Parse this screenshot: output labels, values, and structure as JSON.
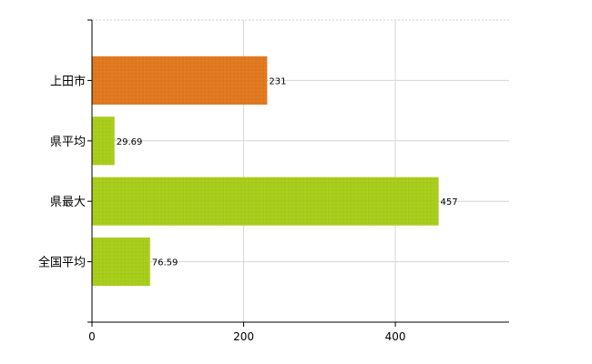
{
  "chart_data": {
    "type": "bar",
    "orientation": "horizontal",
    "categories": [
      "上田市",
      "県平均",
      "県最大",
      "全国平均"
    ],
    "values": [
      231,
      29.69,
      457,
      76.59
    ],
    "data_labels": [
      "231",
      "29.69",
      "457",
      "76.59"
    ],
    "bar_colors": [
      "#E07820",
      "#A8CC1C",
      "#A8CC1C",
      "#A8CC1C"
    ],
    "xlim": [
      0,
      550
    ],
    "xticks": [
      0,
      200,
      400
    ],
    "xtick_labels": [
      "0",
      "200",
      "400"
    ],
    "title": "",
    "xlabel": "",
    "ylabel": "",
    "grid": true,
    "legend": "none"
  }
}
